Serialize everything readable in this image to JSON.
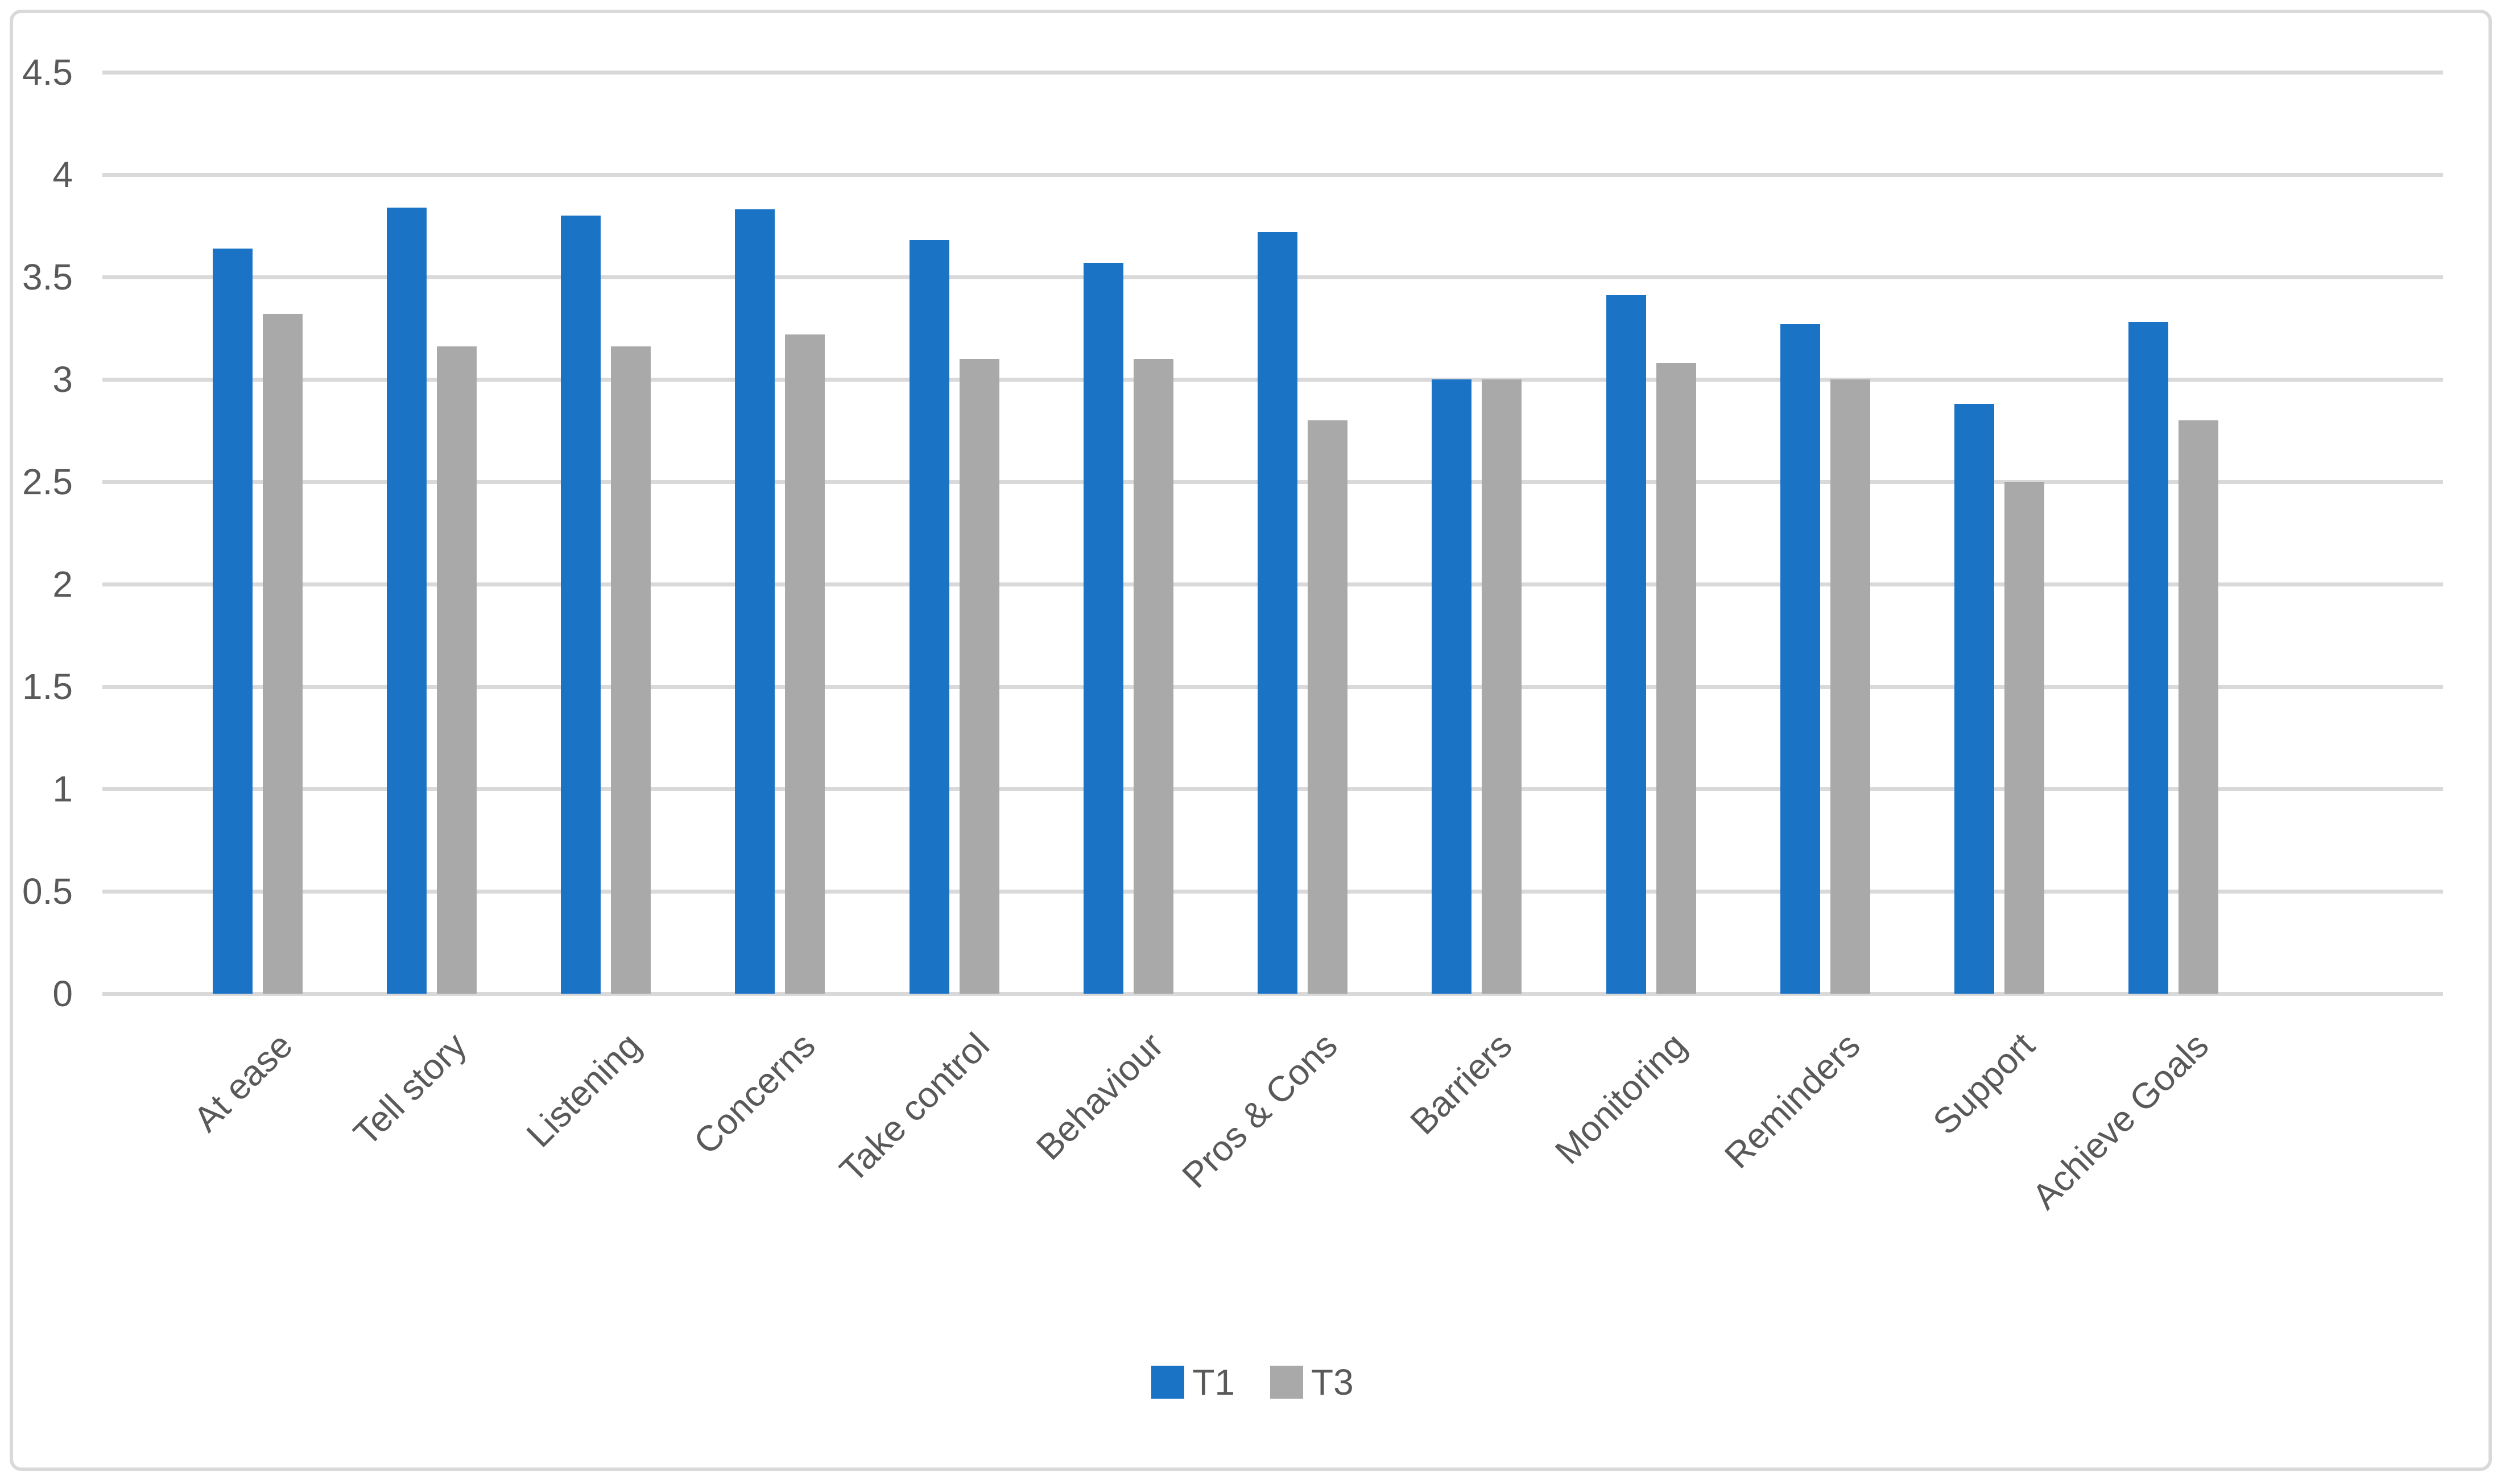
{
  "chart_data": {
    "type": "bar",
    "title": "",
    "xlabel": "",
    "ylabel": "",
    "categories": [
      "At ease",
      "Tell story",
      "Listening",
      "Concerns",
      "Take control",
      "Behaviour",
      "Pros & Cons",
      "Barriers",
      "Monitoring",
      "Reminders",
      "Support",
      "Achieve Goals"
    ],
    "series": [
      {
        "name": "T1",
        "color": "#1B73C6",
        "values": [
          3.64,
          3.84,
          3.8,
          3.83,
          3.68,
          3.57,
          3.72,
          3.0,
          3.41,
          3.27,
          2.88,
          3.28
        ]
      },
      {
        "name": "T3",
        "color": "#A9A9A9",
        "values": [
          3.32,
          3.16,
          3.16,
          3.22,
          3.1,
          3.1,
          2.8,
          3.0,
          3.08,
          3.0,
          2.5,
          2.8
        ]
      }
    ],
    "ylim": [
      0,
      4.5
    ],
    "ytick_step": 0.5,
    "yticks": [
      "0",
      "0.5",
      "1",
      "1.5",
      "2",
      "2.5",
      "3",
      "3.5",
      "4",
      "4.5"
    ],
    "grid": true,
    "legend_position": "bottom"
  },
  "legend": {
    "items": [
      {
        "label": "T1",
        "color": "#1B73C6"
      },
      {
        "label": "T3",
        "color": "#A9A9A9"
      }
    ]
  },
  "colors": {
    "background": "#FFFFFF",
    "frame_border": "#D9D9D9",
    "gridline": "#D9D9D9",
    "axis_text": "#595959",
    "series_t1": "#1B73C6",
    "series_t3": "#A9A9A9"
  }
}
